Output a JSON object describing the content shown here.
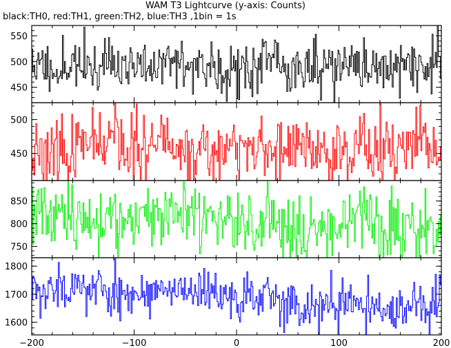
{
  "header": {
    "title": "WAM T3 Lightcurve (y-axis: Counts)",
    "subtitle": "black:TH0, red:TH1, green:TH2, blue:TH3 ,1bin = 1s"
  },
  "chart_data": [
    {
      "type": "line",
      "name": "TH0",
      "color": "#000000",
      "xlim": [
        -200,
        200
      ],
      "ylim": [
        420,
        570
      ],
      "yticks": [
        450,
        500,
        550
      ],
      "xticks": [
        -200,
        -100,
        0,
        100,
        200
      ],
      "mean": 492,
      "spread": 26,
      "trend": 0,
      "seed": 11
    },
    {
      "type": "line",
      "name": "TH1",
      "color": "#ff0000",
      "xlim": [
        -200,
        200
      ],
      "ylim": [
        410,
        525
      ],
      "yticks": [
        450,
        500
      ],
      "xticks": [
        -200,
        -100,
        0,
        100,
        200
      ],
      "mean": 455,
      "spread": 24,
      "trend": 0,
      "seed": 23
    },
    {
      "type": "line",
      "name": "TH2",
      "color": "#00ee00",
      "xlim": [
        -200,
        200
      ],
      "ylim": [
        725,
        895
      ],
      "yticks": [
        750,
        800,
        850
      ],
      "xticks": [
        -200,
        -100,
        0,
        100,
        200
      ],
      "mean": 812,
      "spread": 36,
      "trend": -25,
      "seed": 37
    },
    {
      "type": "line",
      "name": "TH3",
      "color": "#0000ff",
      "xlim": [
        -200,
        200
      ],
      "ylim": [
        1555,
        1830
      ],
      "yticks": [
        1600,
        1700,
        1800
      ],
      "xticks": [
        -200,
        -100,
        0,
        100,
        200
      ],
      "mean": 1705,
      "spread": 42,
      "trend": -85,
      "seed": 53
    }
  ],
  "x_axis": {
    "tick_labels": [
      "−200",
      "−100",
      "0",
      "100",
      "200"
    ]
  }
}
